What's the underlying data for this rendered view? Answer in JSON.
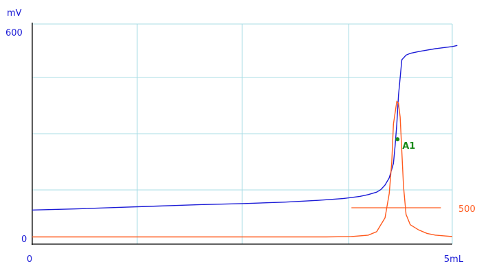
{
  "chart_data": {
    "type": "line",
    "title": "",
    "xlabel": "",
    "ylabel": "",
    "y_unit": "mV",
    "x_unit": "5mL",
    "xlim": [
      0,
      5
    ],
    "ylim": [
      0,
      600
    ],
    "x_ticks": [
      {
        "value": 0,
        "label": "0"
      },
      {
        "value": 5,
        "label": "5mL"
      }
    ],
    "y_ticks": [
      {
        "value": 0,
        "label": "0"
      },
      {
        "value": 600,
        "label": "600"
      }
    ],
    "grid": true,
    "colors": {
      "potential": "#1a1ad6",
      "derivative": "#ff5a1e",
      "marker": "#1a8a1a",
      "grid": "#a8dce6",
      "axis": "#000000"
    },
    "series": [
      {
        "name": "",
        "axis": "left",
        "x": [
          0.0,
          0.5,
          1.0,
          1.5,
          2.0,
          2.5,
          3.0,
          3.4,
          3.7,
          3.9,
          4.0,
          4.1,
          4.15,
          4.2,
          4.25,
          4.3,
          4.32,
          4.34,
          4.36,
          4.38,
          4.4,
          4.45,
          4.5,
          4.6,
          4.7,
          4.8,
          4.9,
          5.0,
          5.06
        ],
        "values": [
          80,
          83,
          87,
          91,
          95,
          98,
          102,
          107,
          112,
          118,
          123,
          130,
          137,
          150,
          170,
          210,
          260,
          320,
          400,
          450,
          500,
          513,
          518,
          523,
          527,
          531,
          534,
          537,
          540
        ]
      },
      {
        "name": "",
        "axis": "right",
        "right_label": "500",
        "x": [
          0.0,
          0.5,
          1.0,
          1.5,
          2.0,
          2.5,
          3.0,
          3.5,
          3.8,
          4.0,
          4.1,
          4.2,
          4.25,
          4.28,
          4.3,
          4.34,
          4.36,
          4.38,
          4.4,
          4.42,
          4.45,
          4.5,
          4.6,
          4.7,
          4.8,
          4.9,
          5.0
        ],
        "values": [
          5,
          5,
          5,
          5,
          5,
          5,
          5,
          5,
          6,
          10,
          20,
          60,
          130,
          220,
          330,
          395,
          390,
          350,
          250,
          150,
          70,
          40,
          25,
          15,
          10,
          8,
          6
        ]
      }
    ],
    "reference_line": {
      "axis": "right",
      "value": 500,
      "x_start": 3.8,
      "x_end": 4.8,
      "label": "500"
    },
    "annotations": [
      {
        "label": "A1",
        "x": 4.34,
        "y": 320
      }
    ]
  }
}
